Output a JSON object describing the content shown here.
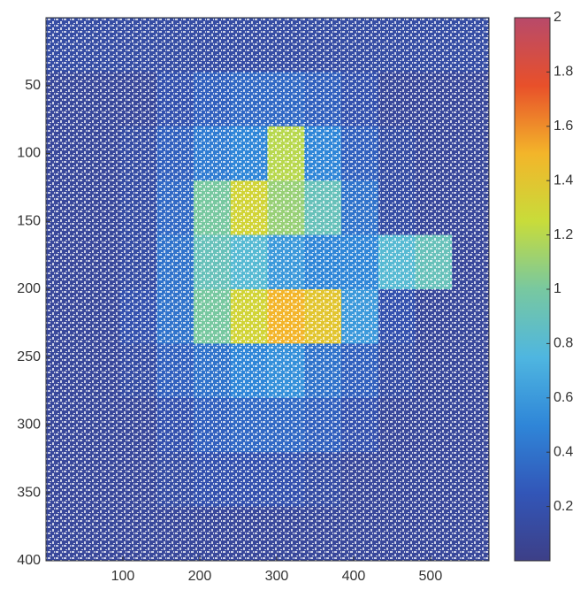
{
  "chart_data": {
    "type": "heatmap",
    "xlim": [
      0,
      576
    ],
    "ylim": [
      0,
      400
    ],
    "xticks": [
      100,
      200,
      300,
      400,
      500
    ],
    "yticks": [
      50,
      100,
      150,
      200,
      250,
      300,
      350,
      400
    ],
    "clim": [
      0,
      2
    ],
    "cticks": [
      0.2,
      0.4,
      0.6,
      0.8,
      1,
      1.2,
      1.4,
      1.6,
      1.8,
      2
    ],
    "colormap": [
      "#3d3f87",
      "#3256b8",
      "#2f86d8",
      "#4fb6e0",
      "#78c8a0",
      "#c8dc3a",
      "#f3b52a",
      "#e8502a",
      "#b84a6a"
    ],
    "z": [
      [
        0.15,
        0.15,
        0.15,
        0.15,
        0.15,
        0.15,
        0.15,
        0.15,
        0.15,
        0.15,
        0.15,
        0.15
      ],
      [
        0.1,
        0.1,
        0.1,
        0.2,
        0.3,
        0.35,
        0.35,
        0.3,
        0.2,
        0.1,
        0.1,
        0.1
      ],
      [
        0.1,
        0.1,
        0.15,
        0.3,
        0.45,
        0.5,
        1.2,
        0.5,
        0.3,
        0.15,
        0.1,
        0.1
      ],
      [
        0.1,
        0.1,
        0.15,
        0.35,
        1.0,
        1.3,
        1.1,
        0.9,
        0.4,
        0.15,
        0.1,
        0.1
      ],
      [
        0.1,
        0.1,
        0.15,
        0.4,
        0.9,
        0.8,
        0.6,
        0.5,
        0.5,
        0.8,
        0.9,
        0.1
      ],
      [
        0.1,
        0.1,
        0.2,
        0.4,
        1.0,
        1.3,
        1.5,
        1.4,
        0.6,
        0.2,
        0.1,
        0.1
      ],
      [
        0.1,
        0.1,
        0.15,
        0.3,
        0.4,
        0.5,
        0.55,
        0.4,
        0.3,
        0.15,
        0.1,
        0.1
      ],
      [
        0.1,
        0.1,
        0.1,
        0.2,
        0.3,
        0.35,
        0.35,
        0.3,
        0.2,
        0.1,
        0.1,
        0.1
      ],
      [
        0.1,
        0.1,
        0.1,
        0.15,
        0.2,
        0.2,
        0.2,
        0.15,
        0.1,
        0.1,
        0.1,
        0.1
      ],
      [
        0.1,
        0.1,
        0.1,
        0.1,
        0.1,
        0.1,
        0.1,
        0.1,
        0.1,
        0.1,
        0.1,
        0.1
      ]
    ]
  }
}
